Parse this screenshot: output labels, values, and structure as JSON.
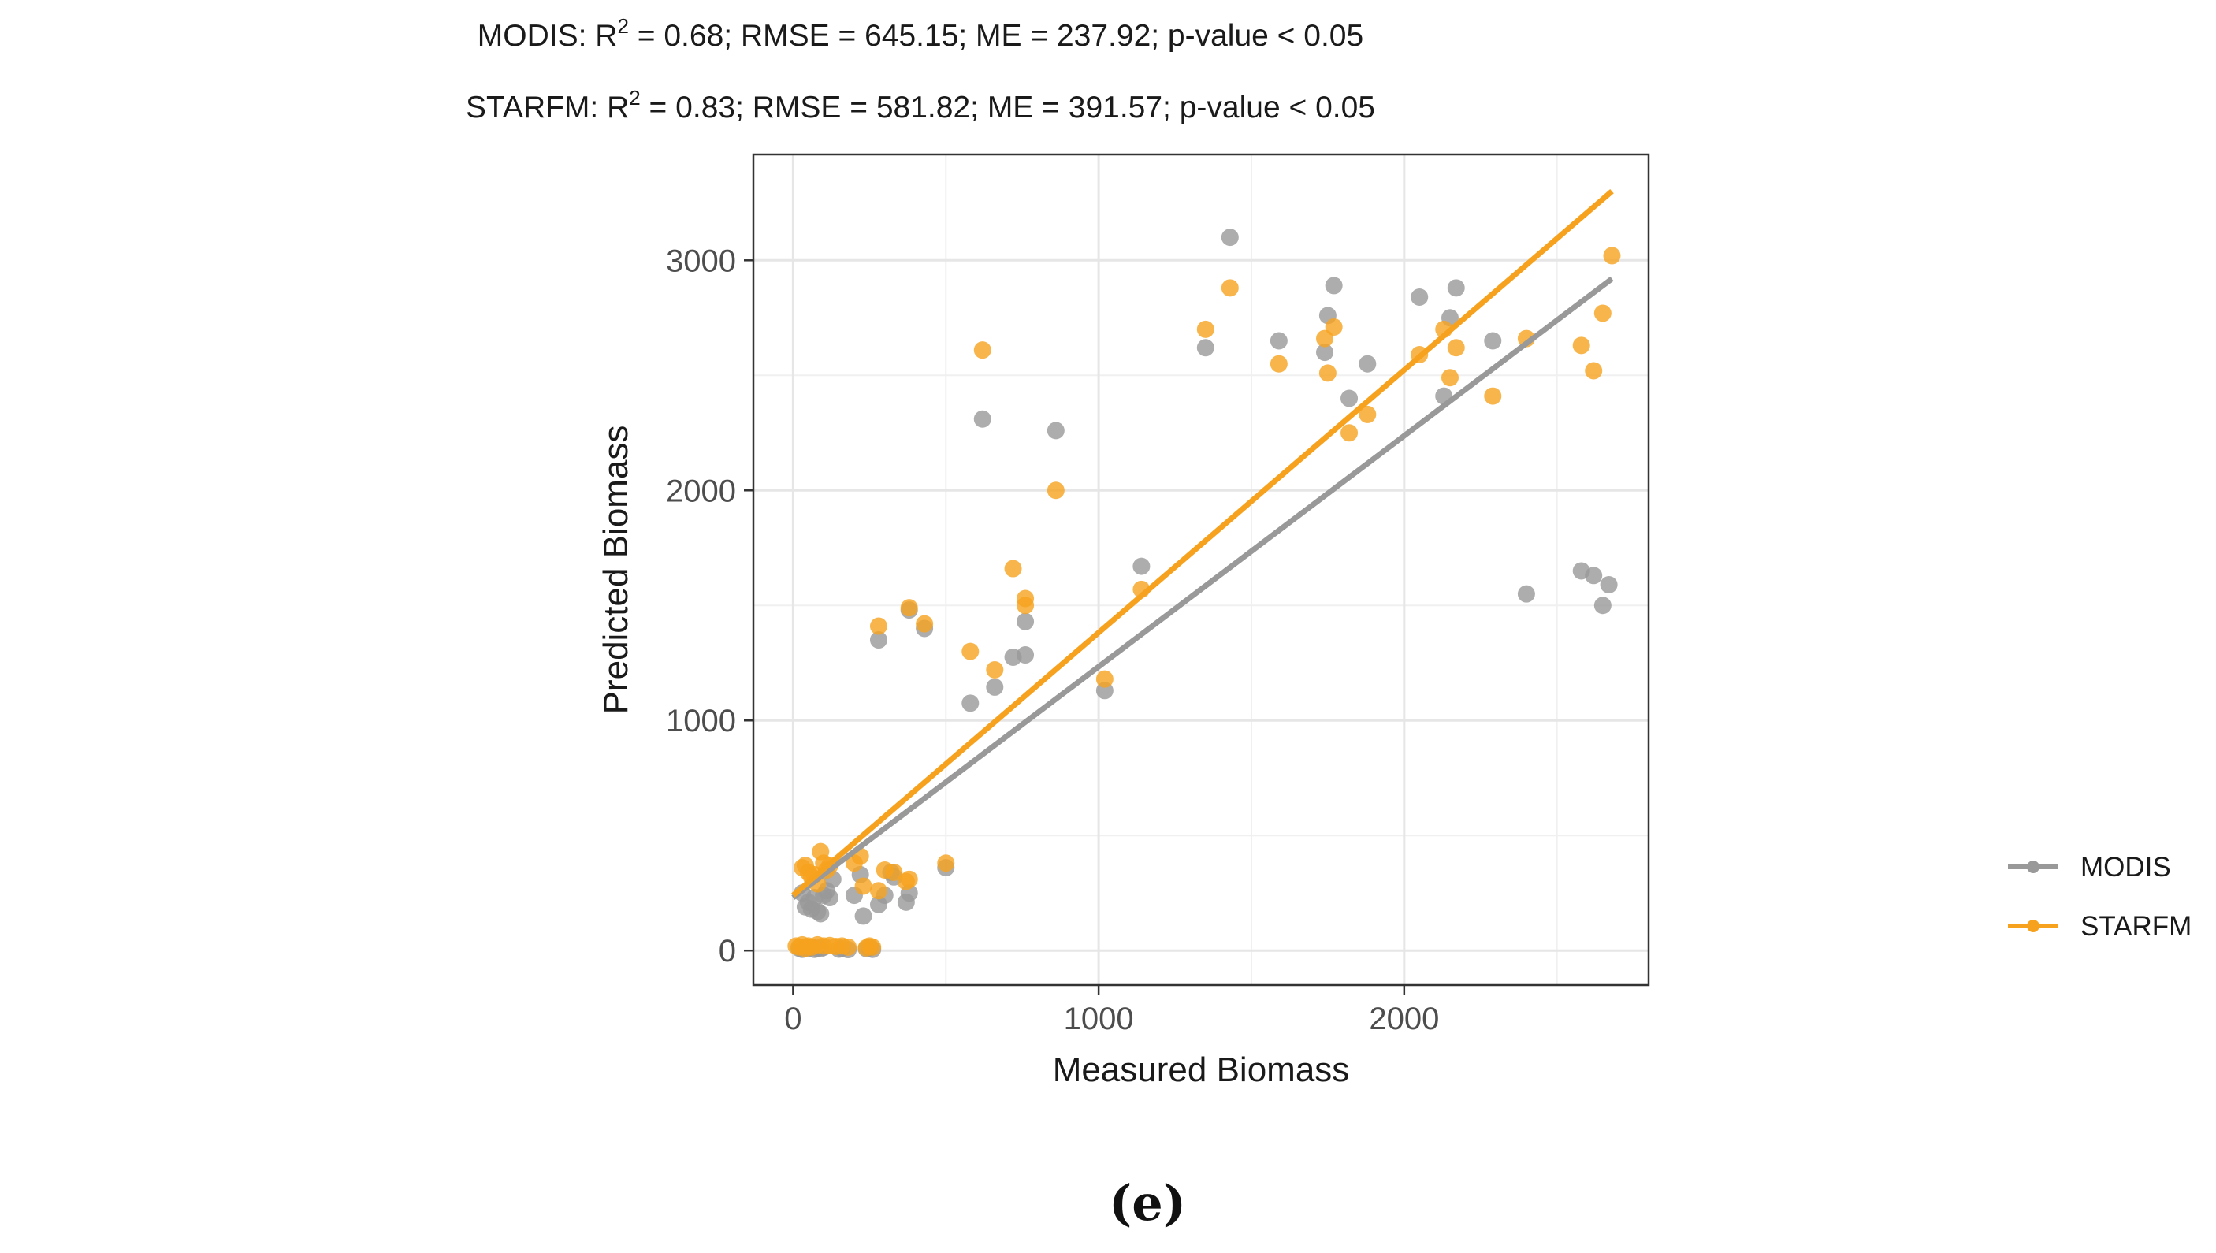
{
  "chart_data": {
    "type": "scatter",
    "stats": [
      {
        "prefix": "MODIS: R",
        "sup": "2",
        "rest": " = 0.68; RMSE = 645.15; ME = 237.92; p-value < 0.05"
      },
      {
        "prefix": "STARFM: R",
        "sup": "2",
        "rest": " = 0.83; RMSE = 581.82; ME = 391.57; p-value < 0.05"
      }
    ],
    "xlabel": "Measured Biomass",
    "ylabel": "Predicted Biomass",
    "xlim": [
      -130,
      2800
    ],
    "ylim": [
      -150,
      3460
    ],
    "xticks": [
      0,
      1000,
      2000
    ],
    "yticks": [
      0,
      1000,
      2000,
      3000
    ],
    "xminor": [
      500,
      1500,
      2500
    ],
    "yminor": [
      500,
      1500,
      2500
    ],
    "panel_label": "(e)",
    "series": [
      {
        "name": "MODIS",
        "color": "#999999",
        "fit": {
          "x0": 0,
          "y0": 230,
          "x1": 2680,
          "y1": 2920
        },
        "points": [
          [
            20,
            10
          ],
          [
            30,
            5
          ],
          [
            40,
            12
          ],
          [
            50,
            8
          ],
          [
            60,
            15
          ],
          [
            70,
            5
          ],
          [
            80,
            10
          ],
          [
            90,
            8
          ],
          [
            100,
            14
          ],
          [
            150,
            6
          ],
          [
            160,
            10
          ],
          [
            180,
            4
          ],
          [
            240,
            8
          ],
          [
            250,
            12
          ],
          [
            260,
            5
          ],
          [
            30,
            250
          ],
          [
            40,
            190
          ],
          [
            50,
            210
          ],
          [
            60,
            180
          ],
          [
            70,
            230
          ],
          [
            80,
            170
          ],
          [
            90,
            160
          ],
          [
            100,
            240
          ],
          [
            110,
            260
          ],
          [
            120,
            230
          ],
          [
            130,
            310
          ],
          [
            200,
            240
          ],
          [
            220,
            330
          ],
          [
            230,
            150
          ],
          [
            280,
            200
          ],
          [
            300,
            240
          ],
          [
            320,
            340
          ],
          [
            330,
            320
          ],
          [
            370,
            210
          ],
          [
            380,
            250
          ],
          [
            500,
            360
          ],
          [
            280,
            1350
          ],
          [
            380,
            1480
          ],
          [
            430,
            1400
          ],
          [
            580,
            1075
          ],
          [
            620,
            2310
          ],
          [
            660,
            1145
          ],
          [
            720,
            1275
          ],
          [
            760,
            1285
          ],
          [
            760,
            1430
          ],
          [
            860,
            2260
          ],
          [
            1020,
            1130
          ],
          [
            1140,
            1670
          ],
          [
            1350,
            2620
          ],
          [
            1430,
            3100
          ],
          [
            1590,
            2650
          ],
          [
            1740,
            2600
          ],
          [
            1750,
            2760
          ],
          [
            1770,
            2890
          ],
          [
            1820,
            2400
          ],
          [
            1880,
            2550
          ],
          [
            2050,
            2840
          ],
          [
            2130,
            2410
          ],
          [
            2150,
            2750
          ],
          [
            2170,
            2880
          ],
          [
            2290,
            2650
          ],
          [
            2400,
            1550
          ],
          [
            2580,
            1650
          ],
          [
            2620,
            1630
          ],
          [
            2650,
            1500
          ],
          [
            2670,
            1590
          ]
        ]
      },
      {
        "name": "STARFM",
        "color": "#F6A21E",
        "fit": {
          "x0": 0,
          "y0": 240,
          "x1": 2680,
          "y1": 3300
        },
        "points": [
          [
            10,
            20
          ],
          [
            20,
            15
          ],
          [
            30,
            25
          ],
          [
            40,
            10
          ],
          [
            50,
            20
          ],
          [
            60,
            15
          ],
          [
            80,
            25
          ],
          [
            100,
            20
          ],
          [
            120,
            22
          ],
          [
            140,
            18
          ],
          [
            160,
            20
          ],
          [
            180,
            15
          ],
          [
            240,
            12
          ],
          [
            250,
            20
          ],
          [
            260,
            15
          ],
          [
            30,
            360
          ],
          [
            40,
            370
          ],
          [
            50,
            340
          ],
          [
            60,
            320
          ],
          [
            70,
            330
          ],
          [
            80,
            290
          ],
          [
            90,
            430
          ],
          [
            100,
            380
          ],
          [
            110,
            350
          ],
          [
            120,
            370
          ],
          [
            200,
            380
          ],
          [
            220,
            410
          ],
          [
            230,
            280
          ],
          [
            280,
            260
          ],
          [
            300,
            350
          ],
          [
            330,
            340
          ],
          [
            370,
            300
          ],
          [
            380,
            310
          ],
          [
            500,
            380
          ],
          [
            280,
            1410
          ],
          [
            380,
            1490
          ],
          [
            430,
            1420
          ],
          [
            580,
            1300
          ],
          [
            620,
            2610
          ],
          [
            660,
            1220
          ],
          [
            720,
            1660
          ],
          [
            760,
            1530
          ],
          [
            760,
            1500
          ],
          [
            860,
            2000
          ],
          [
            1020,
            1180
          ],
          [
            1140,
            1570
          ],
          [
            1350,
            2700
          ],
          [
            1430,
            2880
          ],
          [
            1590,
            2550
          ],
          [
            1740,
            2660
          ],
          [
            1750,
            2510
          ],
          [
            1770,
            2710
          ],
          [
            1820,
            2250
          ],
          [
            1880,
            2330
          ],
          [
            2050,
            2590
          ],
          [
            2130,
            2700
          ],
          [
            2150,
            2490
          ],
          [
            2170,
            2620
          ],
          [
            2290,
            2410
          ],
          [
            2400,
            2660
          ],
          [
            2580,
            2630
          ],
          [
            2620,
            2520
          ],
          [
            2650,
            2770
          ],
          [
            2680,
            3020
          ]
        ]
      }
    ]
  }
}
